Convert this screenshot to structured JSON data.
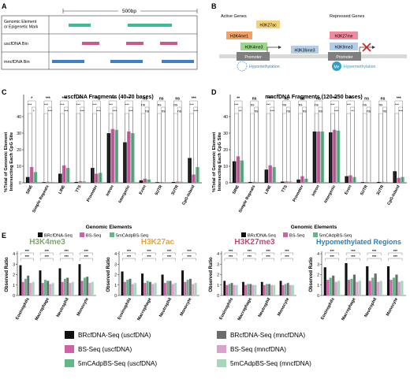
{
  "colors": {
    "black": "#111111",
    "pink": "#d060a8",
    "green": "#60b888",
    "dark_gray": "#6b6b6b",
    "light_pink": "#d9a3cd",
    "light_green": "#a6d7ba",
    "bin_pink": "#c95b8a",
    "bin_blue": "#3f7fc6",
    "element_green": "#3dbd8c",
    "gray_bg": "#d9d9d9"
  },
  "panel_a": {
    "letter": "A",
    "scale_label": "500bp",
    "rows": [
      {
        "label": "Genomic Element\nor Epigenetic Mark"
      },
      {
        "label": "uscfDNA Bin"
      },
      {
        "label": "mncfDNA Bin"
      }
    ]
  },
  "panel_b": {
    "letter": "B",
    "active_title": "Active Genes",
    "repressed_title": "Repressed Genes",
    "marks": {
      "h3k27ac": "H3K27ac",
      "h3k4me1": "H3K4me1",
      "h3k4me3": "H3K4me3",
      "h3k36me3": "H3K36me3",
      "h3k27me": "H3K27me",
      "h3k9me3": "H3K9me3"
    },
    "promoter": "Promoter",
    "hypomethylation": "Hypomethylation",
    "hypermethylation": "Hypermethylation",
    "me": "Me"
  },
  "chart_data": [
    {
      "id": "C",
      "type": "bar",
      "title": "uscfDNA Fragments (40-70 bases)",
      "ylabel": "%Total of Genomic Element\nIntersecting Each CpG Site",
      "xlabel": "Genomic Elements",
      "categories": [
        "SINE",
        "Simple Repeats",
        "LINE",
        "TTS",
        "Promoter",
        "Intron",
        "Intergenic",
        "Exon",
        "5UTR",
        "3UTR",
        "CpG-Island"
      ],
      "ylim": [
        0,
        40
      ],
      "series": [
        {
          "name": "BRcfDNA-Seq",
          "values": [
            3.5,
            0.4,
            5.5,
            0.5,
            9.0,
            30.0,
            24.5,
            1.5,
            0.4,
            0.5,
            15.0
          ]
        },
        {
          "name": "BS-Seq",
          "values": [
            9.5,
            0.6,
            10.5,
            1.0,
            5.5,
            32.5,
            31.0,
            2.5,
            0.5,
            0.7,
            5.0
          ]
        },
        {
          "name": "5mCAdpBS-Seq",
          "values": [
            6.5,
            0.5,
            9.0,
            0.8,
            6.0,
            32.0,
            30.0,
            2.0,
            0.4,
            0.6,
            9.5
          ]
        }
      ],
      "significance": [
        "*",
        "***",
        "***",
        "***",
        "***",
        "***",
        "***",
        "ns",
        "ns",
        "ns",
        "***"
      ]
    },
    {
      "id": "D",
      "type": "bar",
      "title": "mncfDNA Fragments (120-250 bases)",
      "ylabel": "%Total of Genomic Element\nIntersecting Each CpG Site",
      "xlabel": "Genomic Elements",
      "categories": [
        "SINE",
        "Simple Repeats",
        "LINE",
        "TTS",
        "Promoter",
        "Intron",
        "Intergenic",
        "Exon",
        "5UTR",
        "3UTR",
        "CpG-Island"
      ],
      "ylim": [
        0,
        40
      ],
      "series": [
        {
          "name": "BRcfDNA-Seq",
          "values": [
            13.0,
            0.5,
            8.0,
            0.7,
            2.0,
            31.0,
            30.5,
            4.0,
            0.4,
            0.5,
            7.0
          ]
        },
        {
          "name": "BS-Seq",
          "values": [
            16.0,
            0.6,
            10.5,
            0.8,
            4.0,
            31.0,
            32.0,
            4.5,
            0.5,
            0.6,
            3.0
          ]
        },
        {
          "name": "5mCAdpBS-Seq",
          "values": [
            13.5,
            0.5,
            9.5,
            0.7,
            2.5,
            31.0,
            31.5,
            3.5,
            0.4,
            0.5,
            3.5
          ]
        }
      ],
      "significance": [
        "**",
        "ns",
        "***",
        "ns",
        "ns",
        "ns",
        "***",
        "**",
        "ns",
        "ns",
        "***"
      ]
    },
    {
      "id": "E1",
      "type": "bar",
      "title": "H3K4me3",
      "title_color": "#7fa86a",
      "ylabel": "Observed Ratio",
      "categories": [
        "Eosinophils",
        "Macrophage",
        "Neutrophil",
        "Monocyte"
      ],
      "ylim": [
        0,
        4
      ],
      "series": [
        {
          "name": "BRcfDNA-Seq (uscfDNA)",
          "values": [
            2.9,
            2.4,
            2.6,
            3.0
          ]
        },
        {
          "name": "BS-Seq (uscfDNA)",
          "values": [
            1.3,
            1.2,
            1.3,
            1.4
          ]
        },
        {
          "name": "5mCAdpBS-Seq (uscfDNA)",
          "values": [
            1.6,
            1.5,
            1.6,
            1.7
          ]
        },
        {
          "name": "BRcfDNA-Seq (mncfDNA)",
          "values": [
            1.9,
            1.4,
            1.7,
            1.8
          ]
        },
        {
          "name": "BS-Seq (mncfDNA)",
          "values": [
            1.2,
            1.1,
            1.2,
            1.2
          ]
        },
        {
          "name": "5mCAdpBS-Seq (mncfDNA)",
          "values": [
            1.3,
            1.2,
            1.3,
            1.3
          ]
        }
      ]
    },
    {
      "id": "E2",
      "type": "bar",
      "title": "H3K27ac",
      "title_color": "#e8a437",
      "ylabel": "Observed Ratio",
      "categories": [
        "Eosinophils",
        "Macrophage",
        "Neutrophil",
        "Monocyte"
      ],
      "ylim": [
        0,
        4
      ],
      "series": [
        {
          "name": "BRcfDNA-Seq (uscfDNA)",
          "values": [
            2.3,
            2.1,
            2.0,
            2.4
          ]
        },
        {
          "name": "BS-Seq (uscfDNA)",
          "values": [
            1.3,
            1.2,
            1.2,
            1.3
          ]
        },
        {
          "name": "5mCAdpBS-Seq (uscfDNA)",
          "values": [
            1.5,
            1.4,
            1.4,
            1.5
          ]
        },
        {
          "name": "BRcfDNA-Seq (mncfDNA)",
          "values": [
            1.6,
            1.3,
            1.4,
            1.6
          ]
        },
        {
          "name": "BS-Seq (mncfDNA)",
          "values": [
            1.1,
            1.1,
            1.1,
            1.1
          ]
        },
        {
          "name": "5mCAdpBS-Seq (mncfDNA)",
          "values": [
            1.2,
            1.2,
            1.2,
            1.2
          ]
        }
      ]
    },
    {
      "id": "E3",
      "type": "bar",
      "title": "H3K27me3",
      "title_color": "#c9466e",
      "ylabel": "Observed Ratio",
      "categories": [
        "Eosinophils",
        "Macrophage",
        "Neutrophil",
        "Monocyte"
      ],
      "ylim": [
        0,
        4
      ],
      "series": [
        {
          "name": "BRcfDNA-Seq (uscfDNA)",
          "values": [
            1.4,
            1.3,
            1.3,
            1.4
          ]
        },
        {
          "name": "BS-Seq (uscfDNA)",
          "values": [
            1.0,
            1.0,
            1.0,
            1.0
          ]
        },
        {
          "name": "5mCAdpBS-Seq (uscfDNA)",
          "values": [
            1.1,
            1.1,
            1.1,
            1.1
          ]
        },
        {
          "name": "BRcfDNA-Seq (mncfDNA)",
          "values": [
            1.2,
            1.1,
            1.1,
            1.2
          ]
        },
        {
          "name": "BS-Seq (mncfDNA)",
          "values": [
            1.0,
            1.0,
            1.0,
            1.0
          ]
        },
        {
          "name": "5mCAdpBS-Seq (mncfDNA)",
          "values": [
            1.0,
            1.0,
            1.0,
            1.0
          ]
        }
      ]
    },
    {
      "id": "E4",
      "type": "bar",
      "title": "Hypomethylated Regions",
      "title_color": "#2f7fb8",
      "ylabel": "Observed Ratio",
      "categories": [
        "Eosinophils",
        "Macrophage",
        "Neutrophil",
        "Monocyte"
      ],
      "ylim": [
        0,
        4
      ],
      "series": [
        {
          "name": "BRcfDNA-Seq (uscfDNA)",
          "values": [
            2.7,
            3.1,
            2.8,
            2.8
          ]
        },
        {
          "name": "BS-Seq (uscfDNA)",
          "values": [
            1.5,
            1.5,
            1.4,
            1.5
          ]
        },
        {
          "name": "5mCAdpBS-Seq (uscfDNA)",
          "values": [
            1.7,
            1.6,
            1.7,
            1.7
          ]
        },
        {
          "name": "BRcfDNA-Seq (mncfDNA)",
          "values": [
            1.9,
            2.0,
            2.1,
            2.0
          ]
        },
        {
          "name": "BS-Seq (mncfDNA)",
          "values": [
            1.3,
            1.3,
            1.3,
            1.3
          ]
        },
        {
          "name": "5mCAdpBS-Seq (mncfDNA)",
          "values": [
            1.4,
            1.4,
            1.4,
            1.4
          ]
        }
      ]
    }
  ],
  "panel_e": {
    "letter": "E"
  },
  "legend_e": [
    {
      "label": "BRcfDNA-Seq (uscfDNA)"
    },
    {
      "label": "BS-Seq (uscfDNA)"
    },
    {
      "label": "5mCAdpBS-Seq (uscfDNA)"
    },
    {
      "label": "BRcfDNA-Seq (mncfDNA)"
    },
    {
      "label": "BS-Seq (mncfDNA)"
    },
    {
      "label": "5mCAdpBS-Seq (mncfDNA)"
    }
  ]
}
